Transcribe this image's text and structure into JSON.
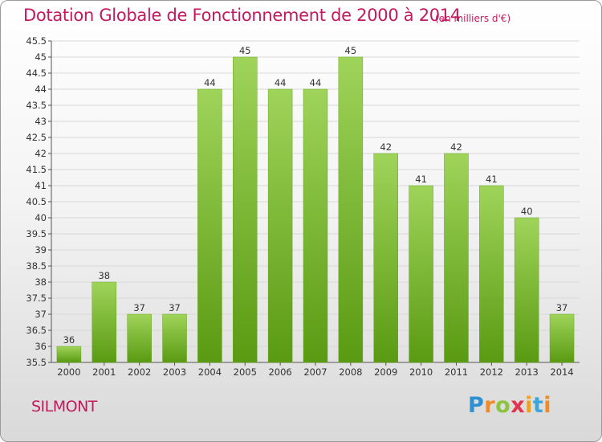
{
  "title": "Dotation Globale de Fonctionnement de 2000 à 2014",
  "subtitle": "(en milliers d'€)",
  "commune": "SILMONT",
  "logo_text": "Proxiti",
  "colors": {
    "title": "#c11a5e",
    "bar_top": "#9fd45a",
    "bar_bottom": "#5a9a12",
    "grid": "#d8d8d8"
  },
  "chart_data": {
    "type": "bar",
    "categories": [
      "2000",
      "2001",
      "2002",
      "2003",
      "2004",
      "2005",
      "2006",
      "2007",
      "2008",
      "2009",
      "2010",
      "2011",
      "2012",
      "2013",
      "2014"
    ],
    "values": [
      36,
      38,
      37,
      37,
      44,
      45,
      44,
      44,
      45,
      42,
      41,
      42,
      41,
      40,
      37
    ],
    "labels": [
      "36",
      "38",
      "37",
      "37",
      "44",
      "45",
      "44",
      "44",
      "45",
      "42",
      "41",
      "42",
      "41",
      "40",
      "37"
    ],
    "ylim": [
      35.5,
      45.5
    ],
    "yticks": [
      "35.5",
      "36",
      "36.5",
      "37",
      "37.5",
      "38",
      "38.5",
      "39",
      "39.5",
      "40",
      "40.5",
      "41",
      "41.5",
      "42",
      "42.5",
      "43",
      "43.5",
      "44",
      "44.5",
      "45",
      "45.5"
    ],
    "grid": true,
    "xlabel": "",
    "ylabel": ""
  }
}
